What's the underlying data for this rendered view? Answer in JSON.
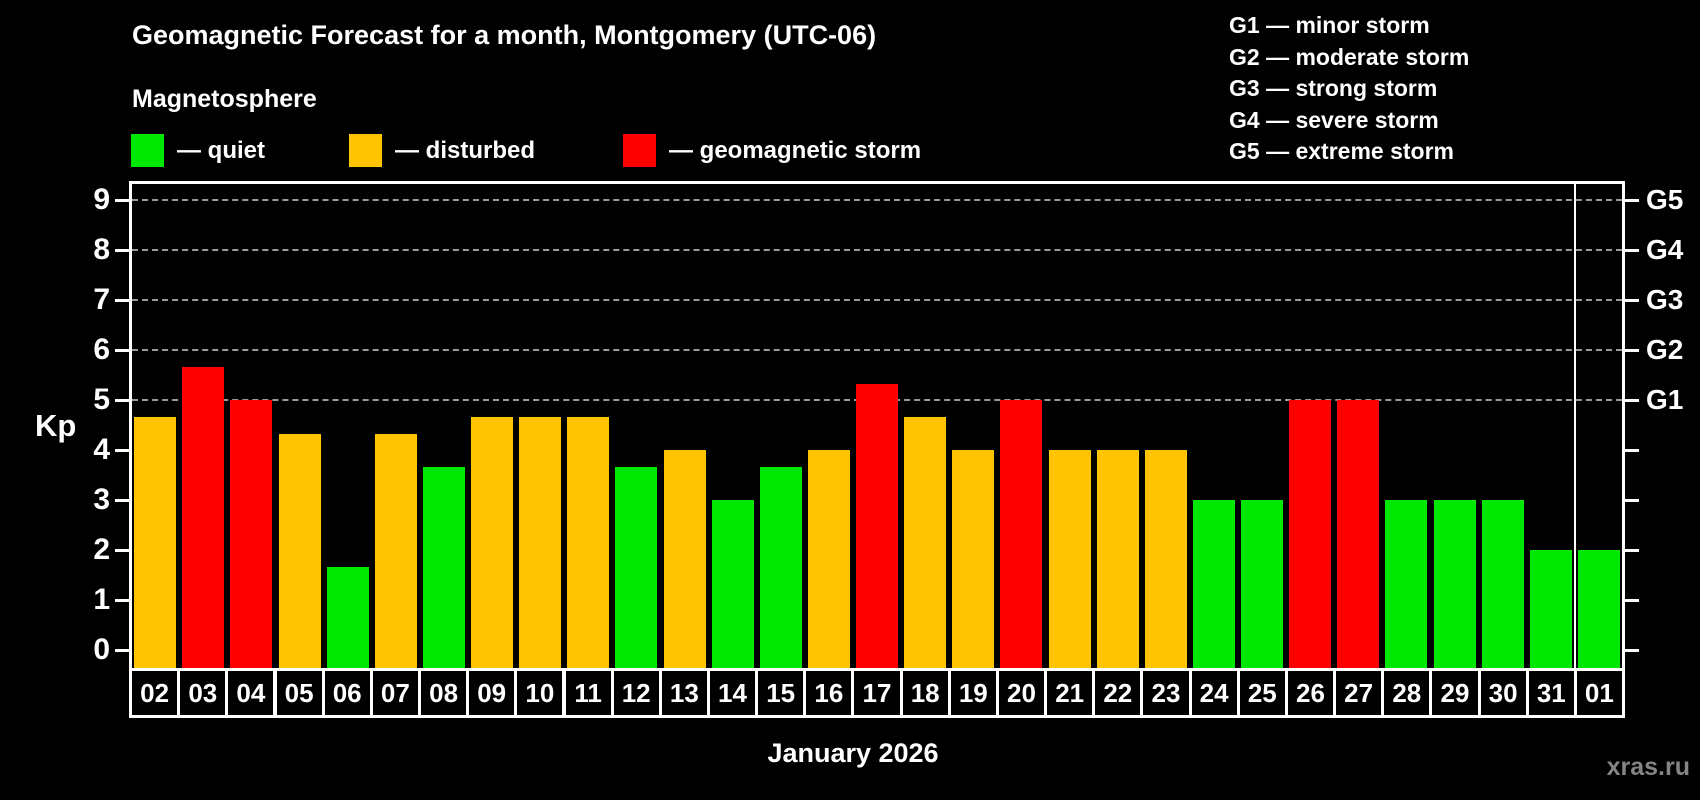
{
  "header": {
    "title": "Geomagnetic Forecast for a month, Montgomery (UTC-06)",
    "subtitle": "Magnetosphere"
  },
  "legend": {
    "items": [
      {
        "label": "— quiet",
        "color": "#00e800"
      },
      {
        "label": "— disturbed",
        "color": "#ffc400"
      },
      {
        "label": "— geomagnetic storm",
        "color": "#ff0000"
      }
    ]
  },
  "g_scale_legend": {
    "items": [
      "G1 — minor storm",
      "G2 — moderate storm",
      "G3 — strong storm",
      "G4 — severe storm",
      "G5 — extreme storm"
    ]
  },
  "chart_data": {
    "type": "bar",
    "title": "Geomagnetic Forecast for a month, Montgomery (UTC-06)",
    "subtitle": "Magnetosphere",
    "xlabel": "January 2026",
    "ylabel": "Kp",
    "ylim": [
      0,
      9.4
    ],
    "y_ticks": [
      0,
      1,
      2,
      3,
      4,
      5,
      6,
      7,
      8,
      9
    ],
    "gridlines_at": [
      5,
      6,
      7,
      8,
      9
    ],
    "right_axis_labels": [
      {
        "kp": 5,
        "label": "G1"
      },
      {
        "kp": 6,
        "label": "G2"
      },
      {
        "kp": 7,
        "label": "G3"
      },
      {
        "kp": 8,
        "label": "G4"
      },
      {
        "kp": 9,
        "label": "G5"
      }
    ],
    "categories": [
      "02",
      "03",
      "04",
      "05",
      "06",
      "07",
      "08",
      "09",
      "10",
      "11",
      "12",
      "13",
      "14",
      "15",
      "16",
      "17",
      "18",
      "19",
      "20",
      "21",
      "22",
      "23",
      "24",
      "25",
      "26",
      "27",
      "28",
      "29",
      "30",
      "31",
      "01"
    ],
    "values": [
      4.67,
      5.67,
      5.0,
      4.33,
      1.67,
      4.33,
      3.67,
      4.67,
      4.67,
      4.67,
      3.67,
      4.0,
      3.0,
      3.67,
      4.0,
      5.33,
      4.67,
      4.0,
      5.0,
      4.0,
      4.0,
      4.0,
      3.0,
      3.0,
      5.0,
      5.0,
      3.0,
      3.0,
      3.0,
      2.0,
      2.0
    ],
    "month_boundary_after_category": "31",
    "bar_colors": {
      "quiet": "#00e800",
      "disturbed": "#ffc400",
      "storm": "#ff0000"
    },
    "color_rule": {
      "quiet_below_kp": 4,
      "disturbed_below_kp": 5,
      "storm_at_or_above_kp": 5
    },
    "legend_position": "top-left",
    "grid": true
  },
  "colors": {
    "background": "#000000",
    "axis": "#ffffff",
    "grid": "#9a9a9a",
    "watermark": "#858585"
  },
  "footer": {
    "watermark": "xras.ru"
  }
}
